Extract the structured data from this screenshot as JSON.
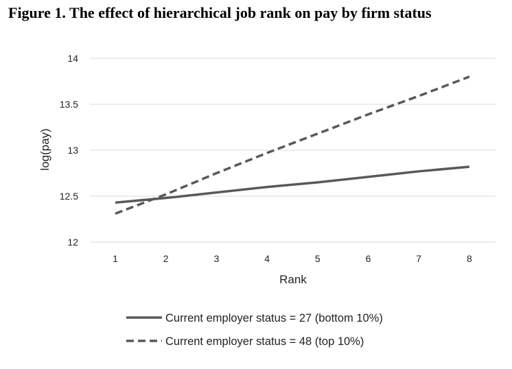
{
  "chart_data": {
    "type": "line",
    "title": "Figure 1. The effect of hierarchical job rank on pay by firm status",
    "xlabel": "Rank",
    "ylabel": "log(pay)",
    "x": [
      1,
      2,
      3,
      4,
      5,
      6,
      7,
      8
    ],
    "xticks": [
      "1",
      "2",
      "3",
      "4",
      "5",
      "6",
      "7",
      "8"
    ],
    "yticks": [
      "12",
      "12.5",
      "13",
      "13.5",
      "14"
    ],
    "ylim": [
      12,
      14
    ],
    "grid": "horizontal",
    "legend_position": "bottom",
    "series": [
      {
        "name": "Current employer status = 27 (bottom 10%)",
        "style": "solid",
        "color": "#595959",
        "values": [
          12.43,
          12.48,
          12.54,
          12.6,
          12.65,
          12.71,
          12.77,
          12.82
        ]
      },
      {
        "name": "Current employer status = 48 (top 10%)",
        "style": "dashed",
        "color": "#595959",
        "values": [
          12.31,
          12.52,
          12.75,
          12.97,
          13.18,
          13.39,
          13.59,
          13.8
        ]
      }
    ]
  }
}
